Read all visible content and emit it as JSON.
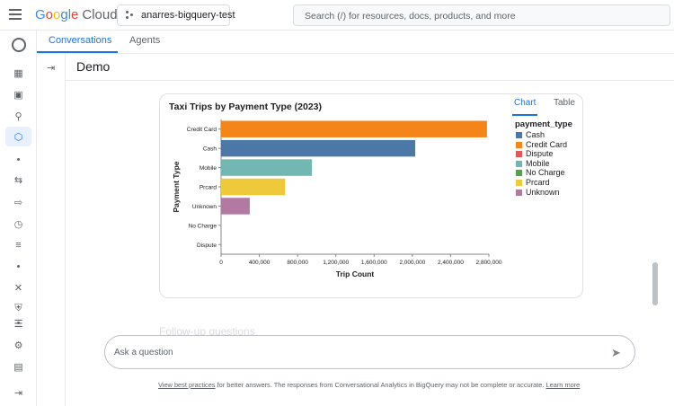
{
  "header": {
    "logo_google": "Google",
    "logo_cloud": "Cloud",
    "project": "anarres-bigquery-test",
    "search_placeholder": "Search (/) for resources, docs, products, and more"
  },
  "tabs": [
    {
      "label": "Conversations",
      "active": true
    },
    {
      "label": "Agents",
      "active": false
    }
  ],
  "page": {
    "title": "Demo",
    "ghost_text": "Follow-up questions"
  },
  "chart_card": {
    "tabs": [
      {
        "label": "Chart",
        "active": true
      },
      {
        "label": "Table",
        "active": false
      }
    ]
  },
  "chart_data": {
    "type": "bar",
    "orientation": "horizontal",
    "title": "Taxi Trips by Payment Type (2023)",
    "xlabel": "Trip Count",
    "ylabel": "Payment Type",
    "xlim": [
      0,
      2800000
    ],
    "xticks": [
      0,
      400000,
      800000,
      1200000,
      1600000,
      2000000,
      2400000,
      2800000
    ],
    "xtick_labels": [
      "0",
      "400,000",
      "800,000",
      "1,200,000",
      "1,600,000",
      "2,000,000",
      "2,400,000",
      "2,800,000"
    ],
    "categories": [
      "Credit Card",
      "Cash",
      "Mobile",
      "Prcard",
      "Unknown",
      "No Charge",
      "Dispute"
    ],
    "values": [
      2780000,
      2030000,
      950000,
      670000,
      300000,
      0,
      0
    ],
    "colors": [
      "#f58518",
      "#4c78a8",
      "#72b7b2",
      "#eeca3b",
      "#b279a2",
      "#54a24b",
      "#e45756"
    ],
    "legend": {
      "title": "payment_type",
      "placement": "right",
      "items": [
        {
          "label": "Cash",
          "color": "#4c78a8"
        },
        {
          "label": "Credit Card",
          "color": "#f58518"
        },
        {
          "label": "Dispute",
          "color": "#e45756"
        },
        {
          "label": "Mobile",
          "color": "#72b7b2"
        },
        {
          "label": "No Charge",
          "color": "#54a24b"
        },
        {
          "label": "Prcard",
          "color": "#eeca3b"
        },
        {
          "label": "Unknown",
          "color": "#b279a2"
        }
      ]
    }
  },
  "input": {
    "placeholder": "Ask a question"
  },
  "footer": {
    "link1": "View best practices",
    "text": " for better answers. The responses from Conversational Analytics in BigQuery may not be complete or accurate. ",
    "link2": "Learn more"
  },
  "icons": {
    "menu": "menu-icon",
    "send": "send-icon"
  }
}
